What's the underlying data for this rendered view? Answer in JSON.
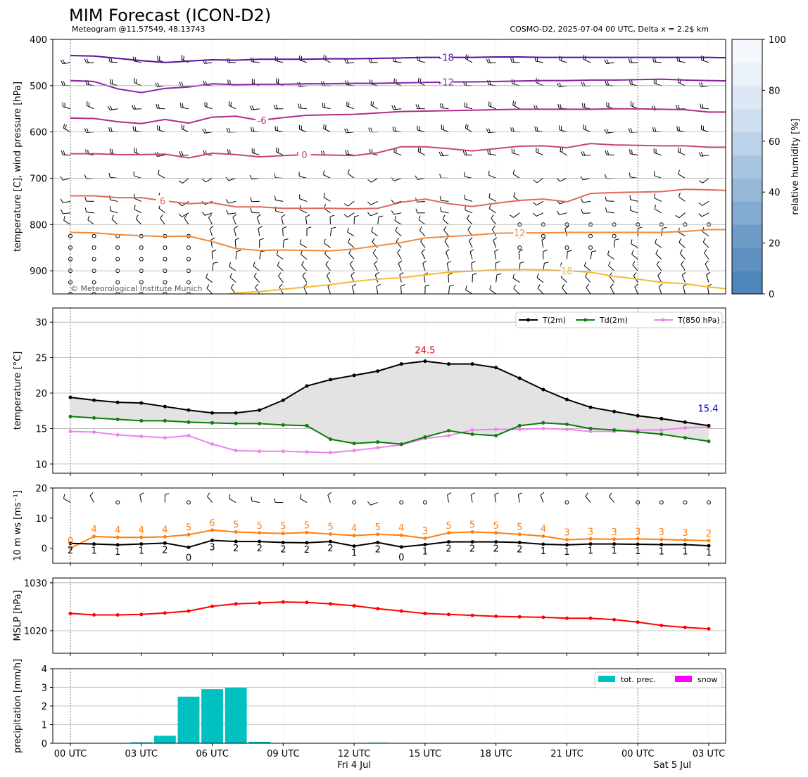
{
  "header": {
    "title": "MIM Forecast (ICON-D2)",
    "location": "Meteogram @11.57549, 48.13743",
    "model_info": "COSMO-D2, 2025-07-04 00 UTC, Delta x = 2.2$ km",
    "copyright": "© Meteorological Institute Munich"
  },
  "time_axis": {
    "tick_labels": [
      "00 UTC",
      "03 UTC",
      "06 UTC",
      "09 UTC",
      "12 UTC",
      "15 UTC",
      "18 UTC",
      "21 UTC",
      "00 UTC",
      "03 UTC"
    ],
    "tick_hours": [
      0,
      3,
      6,
      9,
      12,
      15,
      18,
      21,
      24,
      27
    ],
    "day_labels": [
      {
        "hour": 12,
        "text": "Fri 4 Jul"
      },
      {
        "hour": 24,
        "text": "Sat 5 Jul"
      }
    ]
  },
  "chart_data": [
    {
      "type": "heatmap",
      "id": "upper_air",
      "ylabel": "temperature [C], wind pressure [hPa]",
      "ylim": [
        950,
        400
      ],
      "yticks": [
        400,
        500,
        600,
        700,
        800,
        900
      ],
      "colorbar": {
        "label": "relative humidity [%]",
        "ticks": [
          0,
          20,
          40,
          60,
          80,
          100
        ],
        "colors": [
          "#4f86b9",
          "#5e91c2",
          "#6e9cc9",
          "#82aad2",
          "#95b8d9",
          "#a8c5e0",
          "#bbd3e8",
          "#cddeef",
          "#dde8f4",
          "#eaf1f8",
          "#f5f9fd"
        ]
      },
      "isotherms": [
        {
          "label": "-18",
          "color": "#5a0fa0",
          "values": [
            435,
            436,
            441,
            446,
            450,
            447,
            444,
            445,
            443,
            443,
            443,
            442,
            442,
            441,
            440,
            439,
            439,
            439,
            438,
            438,
            439,
            439,
            439,
            439,
            439,
            439,
            439,
            439,
            440
          ]
        },
        {
          "label": "-12",
          "color": "#8a22a8",
          "values": [
            489,
            491,
            507,
            515,
            506,
            503,
            496,
            498,
            497,
            497,
            496,
            496,
            495,
            495,
            494,
            493,
            492,
            492,
            491,
            490,
            489,
            489,
            488,
            488,
            487,
            486,
            488,
            489,
            490
          ]
        },
        {
          "label": "-6",
          "color": "#b22b8c",
          "values": [
            570,
            571,
            578,
            582,
            573,
            581,
            568,
            566,
            575,
            569,
            564,
            563,
            562,
            559,
            556,
            555,
            554,
            553,
            552,
            551,
            551,
            551,
            551,
            550,
            550,
            551,
            552,
            557,
            557
          ]
        },
        {
          "label": "0",
          "color": "#c8476e",
          "values": [
            647,
            647,
            649,
            649,
            648,
            656,
            646,
            649,
            654,
            651,
            649,
            650,
            651,
            645,
            632,
            632,
            636,
            641,
            636,
            631,
            630,
            634,
            625,
            628,
            629,
            630,
            630,
            633,
            633
          ]
        },
        {
          "label": "6",
          "color": "#e0685a",
          "values": [
            738,
            738,
            742,
            742,
            749,
            755,
            753,
            762,
            762,
            765,
            765,
            765,
            766,
            765,
            752,
            745,
            755,
            761,
            754,
            748,
            745,
            751,
            733,
            731,
            730,
            729,
            724,
            725,
            727
          ]
        },
        {
          "label": "12",
          "color": "#f08a3c",
          "values": [
            817,
            818,
            822,
            824,
            826,
            825,
            837,
            852,
            856,
            855,
            856,
            857,
            853,
            846,
            839,
            829,
            826,
            823,
            819,
            818,
            818,
            817,
            817,
            817,
            817,
            817,
            815,
            811,
            811
          ]
        },
        {
          "label": "18",
          "color": "#f5b830",
          "values": [
            1050,
            1048,
            1040,
            1010,
            985,
            962,
            955,
            948,
            945,
            940,
            935,
            930,
            923,
            918,
            915,
            909,
            903,
            901,
            898,
            897,
            898,
            900,
            903,
            912,
            918,
            925,
            928,
            935,
            940
          ]
        }
      ],
      "isotherm_label_positions": [
        {
          "label": "-18",
          "hour": 15.9
        },
        {
          "label": "-12",
          "hour": 15.9
        },
        {
          "label": "-6",
          "hour": 8.1
        },
        {
          "label": "0",
          "hour": 9.9
        },
        {
          "label": "6",
          "hour": 3.9
        },
        {
          "label": "12",
          "hour": 19.0
        },
        {
          "label": "18",
          "hour": 21.0
        },
        {
          "label": "18",
          "hour": 1.0
        }
      ]
    },
    {
      "type": "line",
      "id": "temperature",
      "ylabel": "temperature [$^\\circ$C]",
      "ylim": [
        8.7,
        32
      ],
      "yticks": [
        10,
        15,
        20,
        25,
        30
      ],
      "x": [
        0,
        1,
        2,
        3,
        4,
        5,
        6,
        7,
        8,
        9,
        10,
        11,
        12,
        13,
        14,
        15,
        16,
        17,
        18,
        19,
        20,
        21,
        22,
        23,
        24,
        25,
        26,
        27
      ],
      "series": [
        {
          "name": "T(2m)",
          "color": "#000000",
          "values": [
            19.4,
            19.0,
            18.7,
            18.6,
            18.1,
            17.6,
            17.2,
            17.2,
            17.6,
            19.0,
            21.0,
            21.9,
            22.5,
            23.1,
            24.1,
            24.5,
            24.1,
            24.1,
            23.6,
            22.1,
            20.5,
            19.1,
            18.0,
            17.4,
            16.8,
            16.4,
            15.9,
            15.4
          ]
        },
        {
          "name": "Td(2m)",
          "color": "#0a7d0a",
          "values": [
            16.7,
            16.5,
            16.3,
            16.1,
            16.1,
            15.9,
            15.8,
            15.7,
            15.7,
            15.5,
            15.4,
            13.5,
            12.9,
            13.1,
            12.8,
            13.8,
            14.7,
            14.2,
            14.0,
            15.4,
            15.8,
            15.6,
            15.0,
            14.8,
            14.5,
            14.2,
            13.7,
            13.2
          ]
        },
        {
          "name": "T(850 hPa)",
          "color": "#ee82ee",
          "values": [
            14.6,
            14.5,
            14.1,
            13.9,
            13.7,
            14.0,
            12.8,
            11.9,
            11.8,
            11.8,
            11.7,
            11.6,
            11.9,
            12.3,
            12.7,
            13.6,
            14.0,
            14.8,
            14.9,
            14.9,
            15.0,
            14.9,
            14.6,
            14.6,
            14.8,
            14.8,
            15.1,
            15.2
          ]
        }
      ],
      "max_label": {
        "text": "24.5",
        "hour": 15,
        "color": "#e00000"
      },
      "last_label": {
        "text": "15.4",
        "hour": 27,
        "color": "#0000cc"
      }
    },
    {
      "type": "line",
      "id": "wind",
      "ylabel": "10 m ws [ms$^{-1}$]",
      "ylim": [
        -5,
        20
      ],
      "yticks": [
        0,
        10,
        20
      ],
      "x": [
        0,
        1,
        2,
        3,
        4,
        5,
        6,
        7,
        8,
        9,
        10,
        11,
        12,
        13,
        14,
        15,
        16,
        17,
        18,
        19,
        20,
        21,
        22,
        23,
        24,
        25,
        26,
        27
      ],
      "series": [
        {
          "name": "wind speed",
          "color": "#000000",
          "values": [
            1.6,
            1.4,
            1.1,
            1.4,
            1.7,
            0.3,
            2.6,
            2.2,
            2.2,
            1.9,
            1.8,
            2.2,
            0.7,
            1.9,
            0.4,
            1.2,
            2.1,
            2.1,
            2.1,
            1.9,
            1.3,
            1.1,
            1.4,
            1.4,
            1.3,
            1.2,
            1.2,
            0.8
          ]
        },
        {
          "name": "gusts",
          "color": "#ff7f0e",
          "values": [
            0.0,
            3.9,
            3.6,
            3.6,
            3.8,
            4.5,
            6.0,
            5.4,
            5.1,
            4.9,
            5.2,
            4.7,
            4.2,
            4.6,
            4.3,
            3.3,
            5.1,
            5.4,
            5.1,
            4.6,
            4.0,
            2.8,
            3.1,
            3.0,
            3.1,
            2.9,
            2.7,
            2.5
          ]
        }
      ],
      "speed_labels": [
        "2",
        "1",
        "1",
        "1",
        "2",
        "0",
        "3",
        "2",
        "2",
        "2",
        "2",
        "2",
        "1",
        "2",
        "0",
        "1",
        "2",
        "2",
        "2",
        "2",
        "1",
        "1",
        "1",
        "1",
        "1",
        "1",
        "1",
        "1"
      ],
      "gust_labels": [
        "0",
        "4",
        "4",
        "4",
        "4",
        "5",
        "6",
        "5",
        "5",
        "5",
        "5",
        "5",
        "4",
        "5",
        "4",
        "3",
        "5",
        "5",
        "5",
        "5",
        "4",
        "3",
        "3",
        "3",
        "3",
        "3",
        "3",
        "2"
      ],
      "wind_dir_deg": [
        300,
        330,
        null,
        350,
        360,
        null,
        320,
        300,
        280,
        270,
        300,
        340,
        null,
        250,
        null,
        null,
        350,
        350,
        350,
        350,
        340,
        null,
        320,
        320,
        null,
        null,
        null,
        null
      ]
    },
    {
      "type": "line",
      "id": "mslp",
      "ylabel": "MSLP [hPa]",
      "ylim": [
        1015.3,
        1031
      ],
      "yticks": [
        1020,
        1030
      ],
      "x": [
        0,
        1,
        2,
        3,
        4,
        5,
        6,
        7,
        8,
        9,
        10,
        11,
        12,
        13,
        14,
        15,
        16,
        17,
        18,
        19,
        20,
        21,
        22,
        23,
        24,
        25,
        26,
        27
      ],
      "series": [
        {
          "name": "MSLP",
          "color": "#ff0000",
          "values": [
            1023.6,
            1023.3,
            1023.3,
            1023.4,
            1023.7,
            1024.1,
            1025.1,
            1025.6,
            1025.8,
            1026.0,
            1025.9,
            1025.6,
            1025.2,
            1024.6,
            1024.1,
            1023.6,
            1023.4,
            1023.2,
            1023.0,
            1022.9,
            1022.8,
            1022.6,
            1022.6,
            1022.3,
            1021.8,
            1021.1,
            1020.7,
            1020.4
          ]
        }
      ]
    },
    {
      "type": "bar",
      "id": "precipitation",
      "ylabel": "precipitation [mm/h]",
      "ylim": [
        0,
        4
      ],
      "yticks": [
        0,
        1,
        2,
        3,
        4
      ],
      "x": [
        0,
        1,
        2,
        3,
        4,
        5,
        6,
        7,
        8,
        9,
        10,
        11,
        12,
        13,
        14,
        15,
        16,
        17,
        18,
        19,
        20,
        21,
        22,
        23,
        24,
        25,
        26,
        27
      ],
      "series": [
        {
          "name": "tot. prec.",
          "color": "#00c0c0",
          "values": [
            0,
            0,
            0,
            0.05,
            0.4,
            2.5,
            2.9,
            2.98,
            0.08,
            0,
            0,
            0,
            0,
            0.03,
            0,
            0,
            0,
            0,
            0,
            0,
            0,
            0,
            0,
            0,
            0,
            0,
            0,
            0
          ]
        },
        {
          "name": "snow",
          "color": "#ff00ff",
          "values": [
            0,
            0,
            0,
            0,
            0,
            0,
            0,
            0,
            0,
            0,
            0,
            0,
            0,
            0,
            0,
            0,
            0,
            0,
            0,
            0,
            0,
            0,
            0,
            0,
            0,
            0,
            0,
            0
          ]
        }
      ]
    }
  ]
}
